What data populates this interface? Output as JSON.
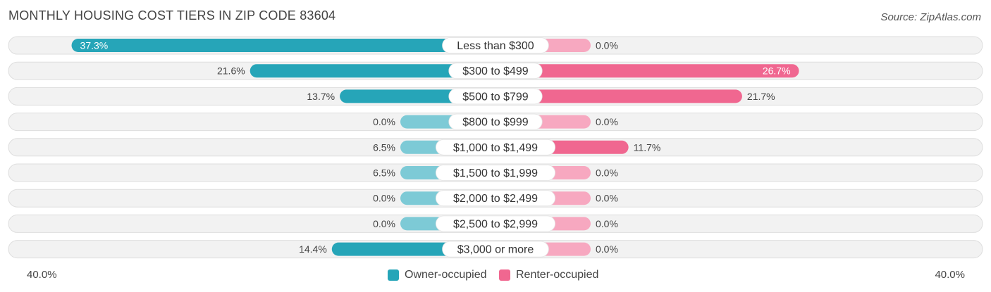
{
  "header": {
    "title": "MONTHLY HOUSING COST TIERS IN ZIP CODE 83604",
    "source": "Source: ZipAtlas.com"
  },
  "colors": {
    "owner": "#26A5B8",
    "owner_light": "#7DCAD6",
    "renter": "#F06790",
    "renter_light": "#F7A8C0",
    "row_bg": "#F2F2F2",
    "row_border": "#DEDEDE"
  },
  "legend": {
    "owner_label": "Owner-occupied",
    "renter_label": "Renter-occupied"
  },
  "axis": {
    "left_label": "40.0%",
    "right_label": "40.0%"
  },
  "chart_data": {
    "type": "bar",
    "orientation": "horizontal-diverging",
    "categories": [
      "Less than $300",
      "$300 to $499",
      "$500 to $799",
      "$800 to $999",
      "$1,000 to $1,499",
      "$1,500 to $1,999",
      "$2,000 to $2,499",
      "$2,500 to $2,999",
      "$3,000 or more"
    ],
    "series": [
      {
        "name": "Owner-occupied",
        "values": [
          37.3,
          21.6,
          13.7,
          0.0,
          6.5,
          6.5,
          0.0,
          0.0,
          14.4
        ],
        "labels": [
          "37.3%",
          "21.6%",
          "13.7%",
          "0.0%",
          "6.5%",
          "6.5%",
          "0.0%",
          "0.0%",
          "14.4%"
        ]
      },
      {
        "name": "Renter-occupied",
        "values": [
          0.0,
          26.7,
          21.7,
          0.0,
          11.7,
          0.0,
          0.0,
          0.0,
          0.0
        ],
        "labels": [
          "0.0%",
          "26.7%",
          "21.7%",
          "0.0%",
          "11.7%",
          "0.0%",
          "0.0%",
          "0.0%",
          "0.0%"
        ]
      }
    ],
    "xlim": [
      -40,
      40
    ],
    "legend_position": "bottom-center"
  }
}
